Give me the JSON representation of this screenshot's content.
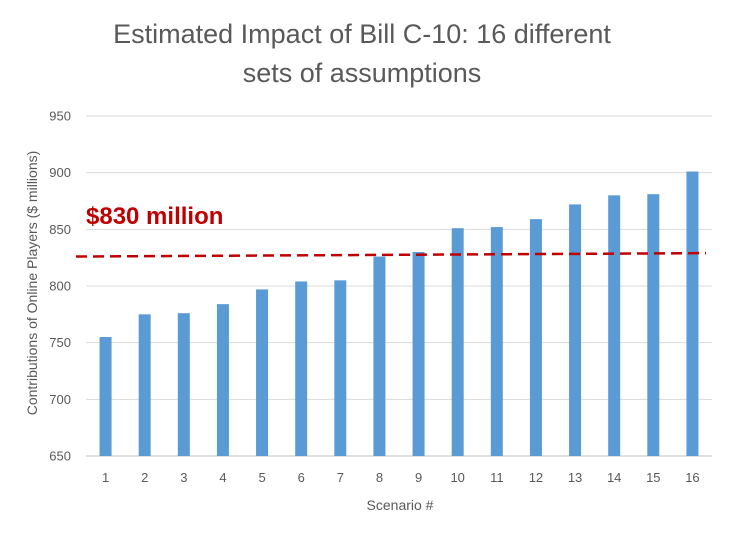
{
  "chart_data": {
    "type": "bar",
    "title_lines": [
      "Estimated Impact of Bill C-10: 16 different",
      "sets of assumptions"
    ],
    "xlabel": "Scenario #",
    "ylabel": "Contributions of Online Players ($ millions)",
    "categories": [
      "1",
      "2",
      "3",
      "4",
      "5",
      "6",
      "7",
      "8",
      "9",
      "10",
      "11",
      "12",
      "13",
      "14",
      "15",
      "16"
    ],
    "values": [
      755,
      775,
      776,
      784,
      797,
      804,
      805,
      826,
      830,
      851,
      852,
      859,
      872,
      880,
      881,
      901
    ],
    "ylim": [
      650,
      950
    ],
    "yticks": [
      650,
      700,
      750,
      800,
      850,
      900,
      950
    ],
    "grid": true,
    "bar_color": "#5b9bd5",
    "reference_line": {
      "label": "$830 million",
      "start_value": 826,
      "end_value": 829,
      "color": "#c00000",
      "style": "dashed"
    }
  }
}
